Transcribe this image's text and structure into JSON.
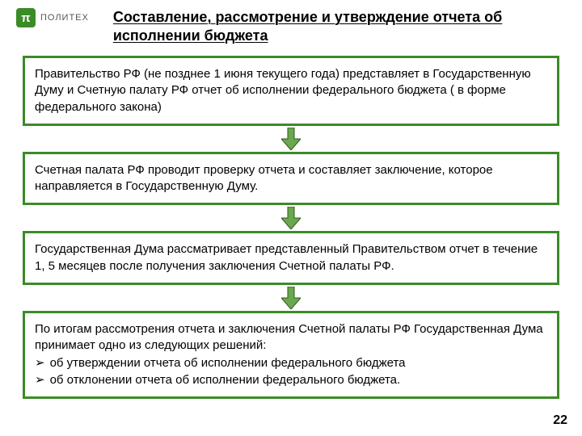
{
  "logo": {
    "symbol": "π",
    "text": "ПОЛИТЕХ"
  },
  "title": "Составление, рассмотрение и утверждение отчета об исполнении бюджета",
  "colors": {
    "box_border": "#3b8b27",
    "box_bg": "#ffffff",
    "arrow_fill": "#6aa84f",
    "arrow_stroke": "#2d5a1a",
    "text": "#000000",
    "logo_bg": "#3b8b27"
  },
  "layout": {
    "box_border_width": 3,
    "box_font_size": 15,
    "arrow_width": 24,
    "arrow_height": 28
  },
  "steps": [
    {
      "text": "Правительство РФ (не позднее 1 июня текущего года) представляет в Государственную Думу и Счетную палату РФ отчет об исполнении федерального бюджета ( в форме федерального закона)"
    },
    {
      "text": "Счетная палата РФ проводит проверку отчета и составляет заключение, которое направляется в Государственную Думу."
    },
    {
      "text": "Государственная Дума рассматривает представленный Правительством отчет в течение 1, 5 месяцев после получения заключения Счетной палаты РФ."
    },
    {
      "intro": "По итогам рассмотрения отчета и заключения Счетной палаты РФ Государственная Дума принимает одно из следующих решений:",
      "bullets": [
        "об утверждении отчета об исполнении федерального бюджета",
        "об отклонении отчета об исполнении федерального бюджета."
      ],
      "bullet_symbol": "➢"
    }
  ],
  "page_number": "22"
}
